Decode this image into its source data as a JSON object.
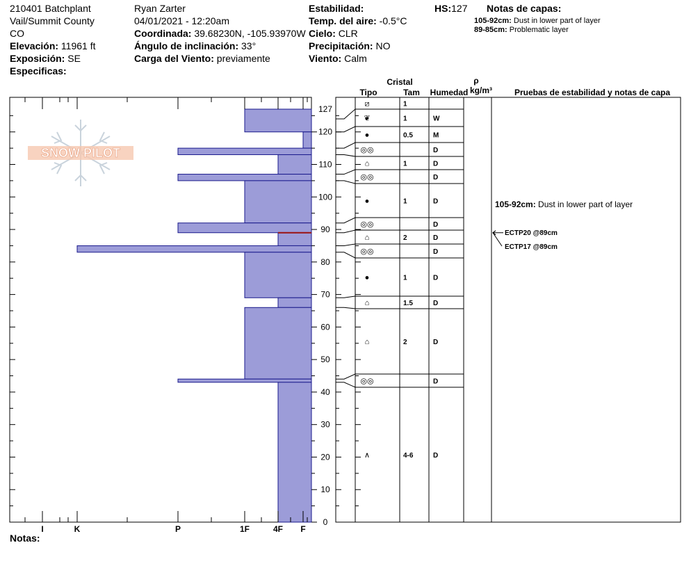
{
  "header": {
    "site": "210401 Batchplant",
    "region": "Vail/Summit County",
    "state": "CO",
    "elevation_label": "Elevación:",
    "elevation": "11961 ft",
    "aspect_label": "Exposición:",
    "aspect": "SE",
    "specifics_label": "Especificas:",
    "observer": "Ryan Zarter",
    "datetime": "04/01/2021 - 12:20am",
    "coord_label": "Coordinada:",
    "coord": "39.68230N, -105.93970W",
    "slope_label": "Ángulo de inclinación:",
    "slope": "33°",
    "wind_load_label": "Carga del Viento:",
    "wind_load": "previamente",
    "stability_label": "Estabilidad:",
    "stability": "",
    "air_temp_label": "Temp. del aire:",
    "air_temp": "-0.5°C",
    "sky_label": "Cielo:",
    "sky": "CLR",
    "precip_label": "Precipitación:",
    "precip": "NO",
    "wind_label": "Viento:",
    "wind": "Calm",
    "hs_label": "HS:",
    "hs": "127",
    "layer_notes_label": "Notas de capas:",
    "layer_notes": [
      {
        "range": "105-92cm:",
        "text": "Dust in lower part of layer"
      },
      {
        "range": "89-85cm:",
        "text": "Problematic layer"
      }
    ]
  },
  "columns": {
    "crystal": "Cristal",
    "type": "Tipo",
    "size": "Tam",
    "moisture": "Humedad",
    "rho": "ρ",
    "density": "kg/m³",
    "tests": "Pruebas de estabilidad y notas de capa"
  },
  "notes_label": "Notas:",
  "logo_text": "SNOW PILOT",
  "chart_data": {
    "type": "bar",
    "orientation": "horizontal",
    "title": "",
    "ylabel": "",
    "xlabel": "",
    "y_range_cm": [
      0,
      127
    ],
    "y_ticks": [
      0,
      10,
      20,
      30,
      40,
      50,
      60,
      70,
      80,
      90,
      100,
      110,
      120,
      127
    ],
    "hardness_scale": [
      "I",
      "K",
      "P",
      "1F",
      "4F",
      "F"
    ],
    "hardness_layers": [
      {
        "top": 127,
        "bottom": 120,
        "hardness": "1F"
      },
      {
        "top": 120,
        "bottom": 115,
        "hardness": "F"
      },
      {
        "top": 115,
        "bottom": 113,
        "hardness": "P"
      },
      {
        "top": 113,
        "bottom": 107,
        "hardness": "4F"
      },
      {
        "top": 107,
        "bottom": 105,
        "hardness": "P"
      },
      {
        "top": 105,
        "bottom": 92,
        "hardness": "1F"
      },
      {
        "top": 92,
        "bottom": 89,
        "hardness": "P"
      },
      {
        "top": 89,
        "bottom": 85,
        "hardness": "4F"
      },
      {
        "top": 85,
        "bottom": 83,
        "hardness": "K"
      },
      {
        "top": 83,
        "bottom": 69,
        "hardness": "1F"
      },
      {
        "top": 69,
        "bottom": 66,
        "hardness": "4F"
      },
      {
        "top": 66,
        "bottom": 44,
        "hardness": "1F"
      },
      {
        "top": 44,
        "bottom": 43,
        "hardness": "P"
      },
      {
        "top": 43,
        "bottom": 0,
        "hardness": "4F"
      }
    ],
    "problem_layer_cm": 89,
    "layer_rows": [
      {
        "top": 127,
        "bottom": 124,
        "type": "⧄",
        "size": "1",
        "moisture": ""
      },
      {
        "top": 124,
        "bottom": 120,
        "type": "❦",
        "size": "1",
        "moisture": "W"
      },
      {
        "top": 120,
        "bottom": 115,
        "type": "●",
        "size": "0.5",
        "moisture": "M"
      },
      {
        "top": 115,
        "bottom": 113,
        "type": "◎◎",
        "size": "",
        "moisture": "D"
      },
      {
        "top": 113,
        "bottom": 107,
        "type": "⌂",
        "size": "1",
        "moisture": "D"
      },
      {
        "top": 107,
        "bottom": 105,
        "type": "◎◎",
        "size": "",
        "moisture": "D"
      },
      {
        "top": 105,
        "bottom": 92,
        "type": "●",
        "size": "1",
        "moisture": "D"
      },
      {
        "top": 92,
        "bottom": 89,
        "type": "◎◎",
        "size": "",
        "moisture": "D"
      },
      {
        "top": 89,
        "bottom": 85,
        "type": "⌂",
        "size": "2",
        "moisture": "D"
      },
      {
        "top": 85,
        "bottom": 83,
        "type": "◎◎",
        "size": "",
        "moisture": "D"
      },
      {
        "top": 83,
        "bottom": 69,
        "type": "●",
        "size": "1",
        "moisture": "D"
      },
      {
        "top": 69,
        "bottom": 66,
        "type": "⌂",
        "size": "1.5",
        "moisture": "D"
      },
      {
        "top": 66,
        "bottom": 44,
        "type": "⌂",
        "size": "2",
        "moisture": "D"
      },
      {
        "top": 44,
        "bottom": 43,
        "type": "◎◎",
        "size": "",
        "moisture": "D"
      },
      {
        "top": 43,
        "bottom": 0,
        "type": "∧",
        "size": "4-6",
        "moisture": "D"
      }
    ],
    "layer_note": {
      "at_cm": 98.5,
      "range": "105-92cm:",
      "text": "Dust in lower part of layer"
    },
    "stability_tests": [
      {
        "label": "ECTP20 @89cm",
        "at_cm": 89
      },
      {
        "label": "ECTP17 @89cm",
        "at_cm": 89
      }
    ]
  },
  "colors": {
    "bar_fill": "#9c9cd8",
    "bar_stroke": "#1a1a8c",
    "problem_line": "#9b1111",
    "logo": "#f0a080"
  }
}
